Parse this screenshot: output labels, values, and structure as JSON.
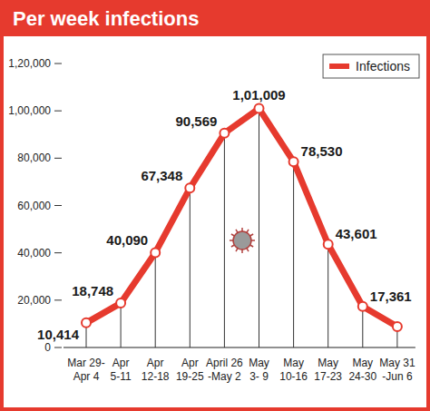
{
  "chart_data": {
    "type": "line",
    "title": "Per week infections",
    "categories": [
      "Mar 29-\nApr 4",
      "Apr\n5-11",
      "Apr\n12-18",
      "Apr\n19-25",
      "April 26\n-May 2",
      "May\n3- 9",
      "May\n10-16",
      "May\n17-23",
      "May\n24-30",
      "May 31\n-Jun 6"
    ],
    "series": [
      {
        "name": "Infections",
        "color": "#e63a2e",
        "marker": "circle",
        "values": [
          10414,
          18748,
          40090,
          67348,
          90569,
          101009,
          78530,
          43601,
          17361,
          8800
        ],
        "value_labels": [
          "10,414",
          "18,748",
          "40,090",
          "67,348",
          "90,569",
          "1,01,009",
          "78,530",
          "43,601",
          "17,361",
          null
        ]
      }
    ],
    "ylim": [
      0,
      120000
    ],
    "yticks": [
      0,
      {
        "value": 20000,
        "label": "20,000"
      },
      {
        "value": 40000,
        "label": "40,000"
      },
      {
        "value": 60000,
        "label": "60,000"
      },
      {
        "value": 80000,
        "label": "80,000"
      },
      {
        "value": 100000,
        "label": "1,00,000"
      },
      {
        "value": 120000,
        "label": "1,20,000"
      }
    ],
    "grid": false,
    "legend": "top-right",
    "data_labels": true
  }
}
